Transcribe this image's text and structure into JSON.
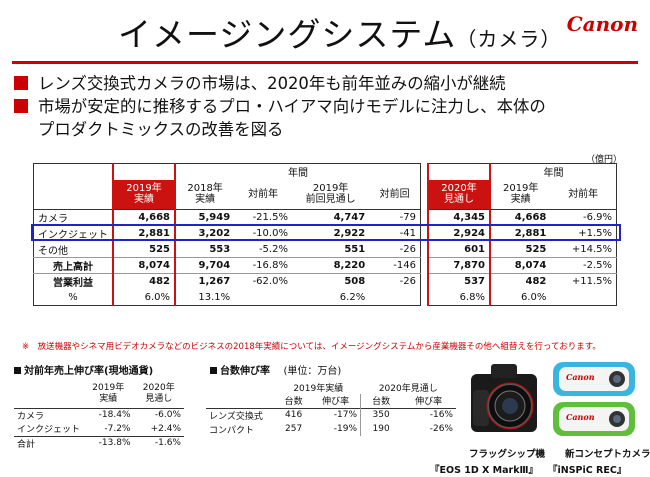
{
  "header": {
    "title_main": "イメージングシステム",
    "title_sub": "（カメラ）",
    "logo": "Canon"
  },
  "bullets": [
    "レンズ交換式カメラの市場は、2020年も前年並みの縮小が継続",
    "市場が安定的に推移するプロ・ハイアマ向けモデルに注力し、本体の",
    "プロダクトミックスの改善を図る"
  ],
  "unit": "（億円）",
  "table_main": {
    "group_label": "年間",
    "headers": [
      "2019年\n実績",
      "2018年\n実績",
      "対前年",
      "2019年\n前回見通し",
      "対前回"
    ],
    "rows": [
      {
        "label": "カメラ",
        "v": [
          "4,668",
          "5,949",
          "-21.5%",
          "4,747",
          "-79"
        ]
      },
      {
        "label": "インクジェット",
        "v": [
          "2,881",
          "3,202",
          "-10.0%",
          "2,922",
          "-41"
        ]
      },
      {
        "label": "その他",
        "v": [
          "525",
          "553",
          "-5.2%",
          "551",
          "-26"
        ]
      },
      {
        "label": "売上高計",
        "v": [
          "8,074",
          "9,704",
          "-16.8%",
          "8,220",
          "-146"
        ]
      },
      {
        "label": "営業利益",
        "v": [
          "482",
          "1,267",
          "-62.0%",
          "508",
          "-26"
        ]
      },
      {
        "label": "%",
        "v": [
          "6.0%",
          "13.1%",
          "",
          "6.2%",
          ""
        ]
      }
    ]
  },
  "table_forecast": {
    "group_label": "年間",
    "headers": [
      "2020年\n見通し",
      "2019年\n実績",
      "対前年"
    ],
    "rows": [
      [
        "4,345",
        "4,668",
        "-6.9%"
      ],
      [
        "2,924",
        "2,881",
        "+1.5%"
      ],
      [
        "601",
        "525",
        "+14.5%"
      ],
      [
        "7,870",
        "8,074",
        "-2.5%"
      ],
      [
        "537",
        "482",
        "+11.5%"
      ],
      [
        "6.8%",
        "6.0%",
        ""
      ]
    ]
  },
  "note": "※　放送機器やシネマ用ビデオカメラなどのビジネスの2018年実績については、イメージングシステムから産業機器その他へ組替えを行っております。",
  "growth_table": {
    "title": "対前年売上伸び率(現地通貨)",
    "headers": [
      "2019年\n実績",
      "2020年\n見通し"
    ],
    "rows": [
      {
        "label": "カメラ",
        "v": [
          "-18.4%",
          "-6.0%"
        ]
      },
      {
        "label": "インクジェット",
        "v": [
          "-7.2%",
          "+2.4%"
        ]
      },
      {
        "label": "合計",
        "v": [
          "-13.8%",
          "-1.6%"
        ]
      }
    ]
  },
  "units_table": {
    "title": "台数伸び率",
    "unit": "(単位：万台)",
    "group_headers": [
      "2019年実績",
      "2020年見通し"
    ],
    "sub_headers": [
      "台数",
      "伸び率",
      "台数",
      "伸び率"
    ],
    "rows": [
      {
        "label": "レンズ交換式",
        "v": [
          "416",
          "-17%",
          "350",
          "-16%"
        ]
      },
      {
        "label": "コンパクト",
        "v": [
          "257",
          "-19%",
          "190",
          "-26%"
        ]
      }
    ]
  },
  "products": {
    "flagship_caption": "フラッグシップ機",
    "flagship_name": "『EOS 1D X MarkⅢ』",
    "concept_caption": "新コンセプトカメラ",
    "concept_name": "『iNSPiC REC』",
    "concept_brand": "Canon"
  },
  "colors": {
    "accent": "#cc0000",
    "highlight": "#2222cc"
  }
}
